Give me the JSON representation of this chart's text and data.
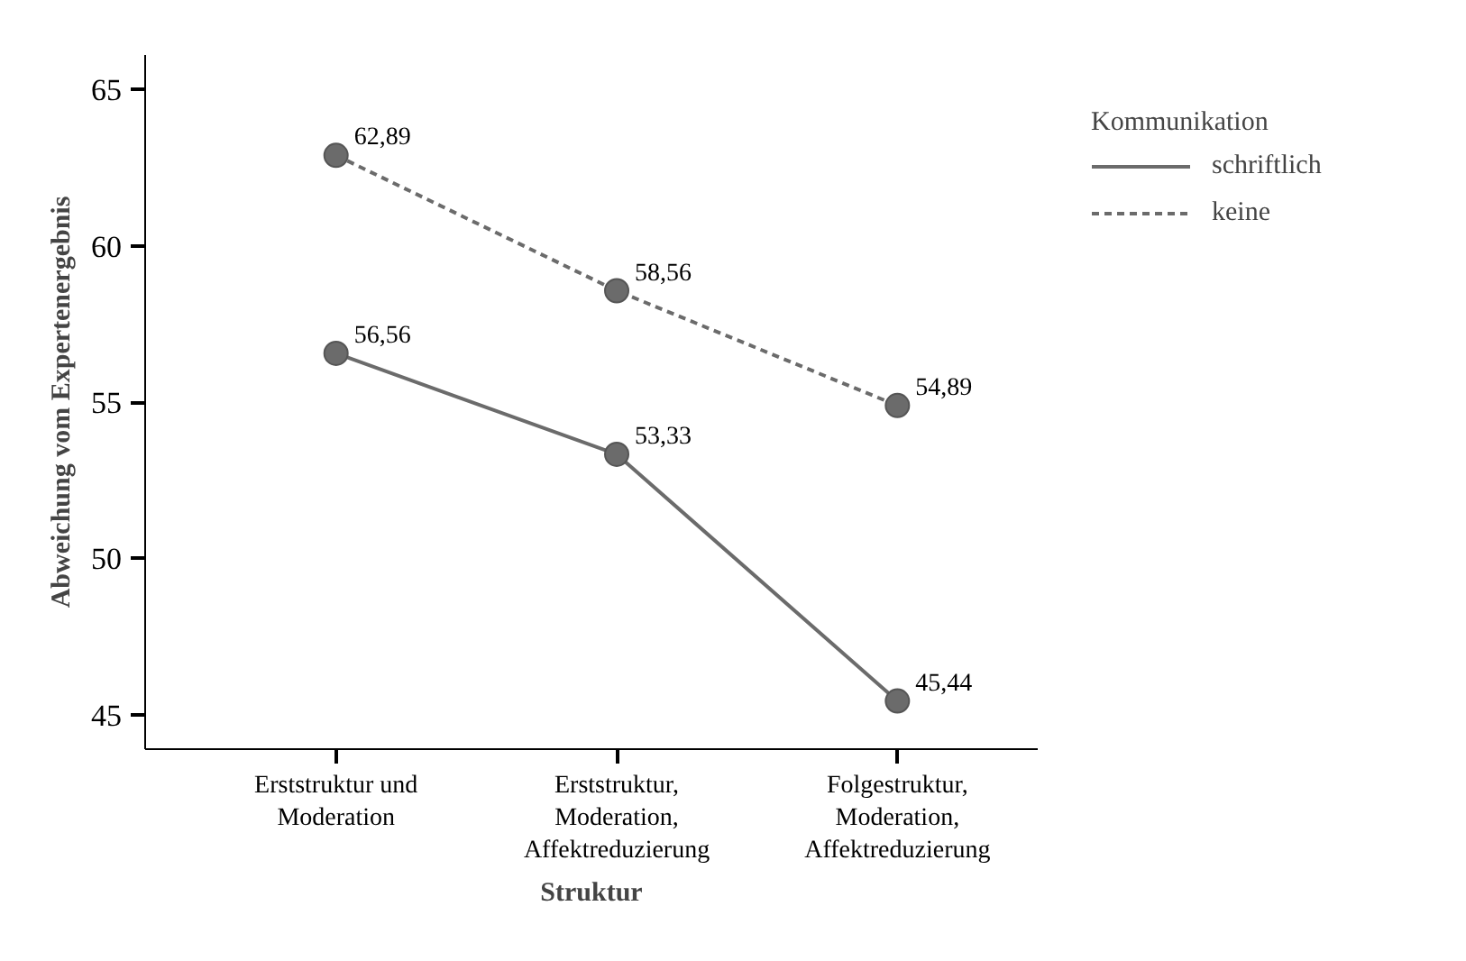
{
  "chart_data": {
    "type": "line",
    "xlabel": "Struktur",
    "ylabel": "Abweichung vom Expertenergebnis",
    "legend_title": "Kommunikation",
    "categories": [
      "Erststruktur und\nModeration",
      "Erststruktur,\nModeration,\nAffektreduzierung",
      "Folgestruktur,\nModeration,\nAffektreduzierung"
    ],
    "series": [
      {
        "name": "schriftlich",
        "color": "#6b6b6b",
        "line_style": "solid",
        "values": [
          56.56,
          53.33,
          45.44
        ],
        "value_labels": [
          "56,56",
          "53,33",
          "45,44"
        ]
      },
      {
        "name": "keine",
        "color": "#6b6b6b",
        "line_style": "dashed",
        "values": [
          62.89,
          58.56,
          54.89
        ],
        "value_labels": [
          "62,89",
          "58,56",
          "54,89"
        ]
      }
    ],
    "ylim": [
      43.9,
      66.1
    ],
    "yticks": [
      45,
      50,
      55,
      60,
      65
    ],
    "grid": false,
    "legend": "top right",
    "marker": "circle"
  }
}
